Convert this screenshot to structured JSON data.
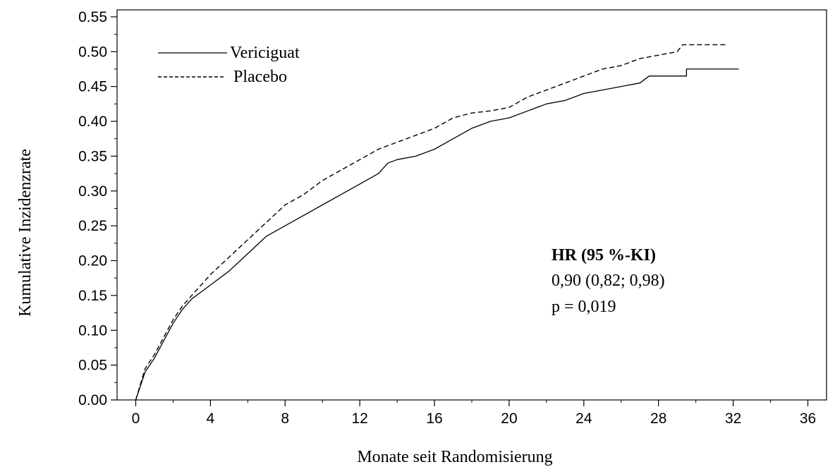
{
  "chart_data": {
    "type": "line",
    "title": "",
    "xlabel": "Monate seit Randomisierung",
    "ylabel": "Kumulative Inzidenzrate",
    "xlim": [
      -1,
      37
    ],
    "ylim": [
      0,
      0.56
    ],
    "x_ticks": [
      0,
      4,
      8,
      12,
      16,
      20,
      24,
      28,
      32,
      36
    ],
    "x_tick_labels": [
      "0",
      "4",
      "8",
      "12",
      "16",
      "20",
      "24",
      "28",
      "32",
      "36"
    ],
    "y_ticks": [
      0,
      0.05,
      0.1,
      0.15,
      0.2,
      0.25,
      0.3,
      0.35,
      0.4,
      0.45,
      0.5,
      0.55
    ],
    "y_tick_labels": [
      "0.00",
      "0.05",
      "0.10",
      "0.15",
      "0.20",
      "0.25",
      "0.30",
      "0.35",
      "0.40",
      "0.45",
      "0.50",
      "0.55"
    ],
    "grid": false,
    "legend_position": "top-left",
    "series": [
      {
        "name": "Vericiguat",
        "line_style": "solid",
        "color": "#000000",
        "x": [
          0,
          0.5,
          1,
          1.5,
          2,
          2.5,
          3,
          4,
          5,
          6,
          7,
          8,
          9,
          10,
          11,
          12,
          13,
          13.5,
          14,
          15,
          16,
          17,
          18,
          19,
          20,
          21,
          22,
          23,
          24,
          25,
          26,
          27,
          27.5,
          28,
          29.5,
          29.5,
          30,
          32.3
        ],
        "y": [
          0,
          0.04,
          0.06,
          0.085,
          0.11,
          0.13,
          0.145,
          0.165,
          0.185,
          0.21,
          0.235,
          0.25,
          0.265,
          0.28,
          0.295,
          0.31,
          0.325,
          0.34,
          0.345,
          0.35,
          0.36,
          0.375,
          0.39,
          0.4,
          0.405,
          0.415,
          0.425,
          0.43,
          0.44,
          0.445,
          0.45,
          0.455,
          0.465,
          0.465,
          0.465,
          0.475,
          0.475,
          0.475
        ]
      },
      {
        "name": "Placebo",
        "line_style": "dashed",
        "color": "#000000",
        "x": [
          0,
          0.5,
          1,
          1.5,
          2,
          2.5,
          3,
          4,
          5,
          6,
          7,
          8,
          9,
          10,
          11,
          12,
          13,
          14,
          15,
          16,
          17,
          18,
          19,
          20,
          21,
          22,
          23,
          24,
          25,
          26,
          27,
          28,
          29,
          29.3,
          30,
          31.7
        ],
        "y": [
          0,
          0.045,
          0.065,
          0.09,
          0.115,
          0.135,
          0.15,
          0.18,
          0.205,
          0.23,
          0.255,
          0.28,
          0.295,
          0.315,
          0.33,
          0.345,
          0.36,
          0.37,
          0.38,
          0.39,
          0.405,
          0.412,
          0.415,
          0.42,
          0.435,
          0.445,
          0.455,
          0.465,
          0.475,
          0.48,
          0.49,
          0.495,
          0.5,
          0.51,
          0.51,
          0.51
        ]
      }
    ],
    "annotations": {
      "heading": "HR (95 %-KI)",
      "line1": "0,90 (0,82; 0,98)",
      "line2": "p = 0,019"
    }
  }
}
